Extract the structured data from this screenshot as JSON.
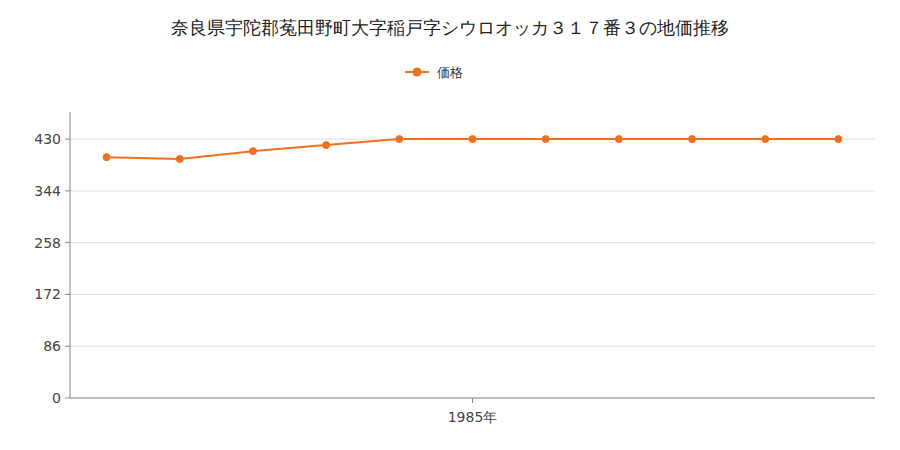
{
  "chart_data": {
    "type": "line",
    "title": "奈良県宇陀郡菟田野町大字稲戸字シウロオッカ３１７番３の地価推移",
    "x": [
      1980,
      1981,
      1982,
      1983,
      1984,
      1985,
      1986,
      1987,
      1988,
      1989,
      1990
    ],
    "series": [
      {
        "name": "価格",
        "color": "#f07020",
        "marker": "circle",
        "values": [
          400,
          397,
          410,
          420,
          430,
          430,
          430,
          430,
          430,
          430,
          430
        ]
      }
    ],
    "xlim": [
      1979.5,
      1990.5
    ],
    "xticks": [
      {
        "value": 1985,
        "label": "1985年"
      }
    ],
    "ylim": [
      0,
      475
    ],
    "yticks": [
      0,
      86,
      172,
      258,
      344,
      430
    ],
    "grid": true,
    "legend": "top"
  }
}
